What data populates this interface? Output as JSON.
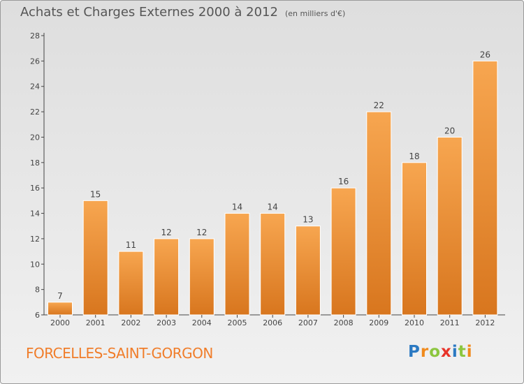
{
  "chart_data": {
    "type": "bar",
    "title": "Achats et Charges Externes 2000 à 2012",
    "subtitle": "(en milliers d'€)",
    "categories": [
      "2000",
      "2001",
      "2002",
      "2003",
      "2004",
      "2005",
      "2006",
      "2007",
      "2008",
      "2009",
      "2010",
      "2011",
      "2012"
    ],
    "values": [
      7,
      15,
      11,
      12,
      12,
      14,
      14,
      13,
      16,
      22,
      18,
      20,
      26
    ],
    "ylim": [
      6,
      28
    ],
    "yticks": [
      6,
      8,
      10,
      12,
      14,
      16,
      18,
      20,
      22,
      24,
      26,
      28
    ],
    "xlabel": "",
    "ylabel": "",
    "grid": false,
    "bar_color_top": "#f7a650",
    "bar_color_bottom": "#d8761e"
  },
  "footer": {
    "commune": "FORCELLES-SAINT-GORGON"
  },
  "logo": {
    "text": "Proxiti",
    "letters": [
      "P",
      "r",
      "o",
      "x",
      "i",
      "t",
      "i"
    ],
    "colors": [
      "#2b79c2",
      "#f08a1c",
      "#8cc63f",
      "#e8332a",
      "#2b79c2",
      "#8cc63f",
      "#f08a1c"
    ]
  }
}
